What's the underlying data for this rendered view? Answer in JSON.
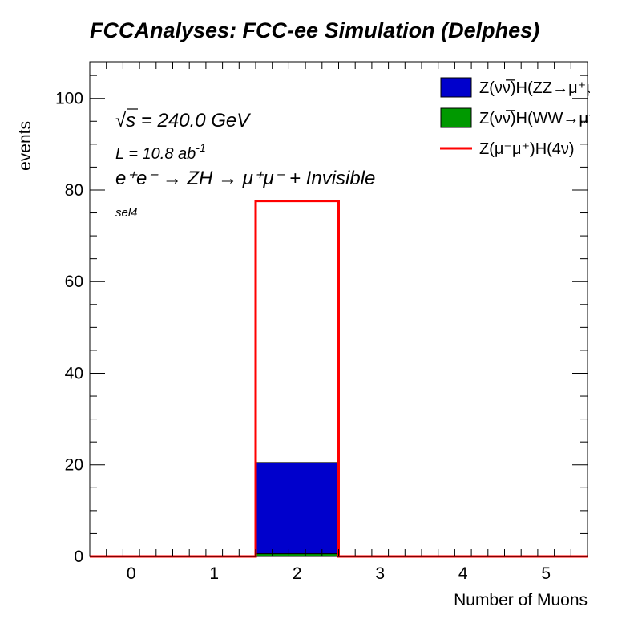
{
  "chart_data": {
    "type": "bar",
    "title": "FCCAnalyses: FCC-ee Simulation (Delphes)",
    "xlabel": "Number of Muons",
    "ylabel": "events",
    "xlim": [
      -0.5,
      5.5
    ],
    "ylim": [
      0,
      108
    ],
    "x_ticks": [
      0,
      1,
      2,
      3,
      4,
      5
    ],
    "y_ticks": [
      0,
      20,
      40,
      60,
      80,
      100
    ],
    "bin_edges": [
      -0.5,
      0.5,
      1.5,
      2.5,
      3.5,
      4.5,
      5.5
    ],
    "stacked": true,
    "series": [
      {
        "name": "Z(νν̅)H(WW→μ⁺νμ",
        "kind": "stacked-fill",
        "color": "#009900",
        "values": [
          0,
          0,
          0.6,
          0,
          0,
          0
        ]
      },
      {
        "name": "Z(νν̅)H(ZZ→μ⁺μ⁻ν",
        "kind": "stacked-fill",
        "color": "#0000cc",
        "values": [
          0,
          0,
          19.9,
          0,
          0,
          0
        ]
      },
      {
        "name": "Z(μ⁻μ⁺)H(4ν)",
        "kind": "line-overlay",
        "color": "#ff0000",
        "values": [
          0,
          0,
          77.6,
          0,
          0,
          0
        ]
      }
    ],
    "legend_position": "top-right",
    "legend_order": [
      1,
      0,
      2
    ],
    "grid": false
  },
  "annotations": {
    "sqrt_prefix": "√",
    "sqrt_var": "s",
    "energy_rest": " = 240.0 GeV",
    "lumi_base": "L = 10.8 ab",
    "lumi_exp": "-1",
    "process_text": "e⁺e⁻ → ZH → μ⁺μ⁻ + Invisible",
    "selection": "sel4"
  }
}
